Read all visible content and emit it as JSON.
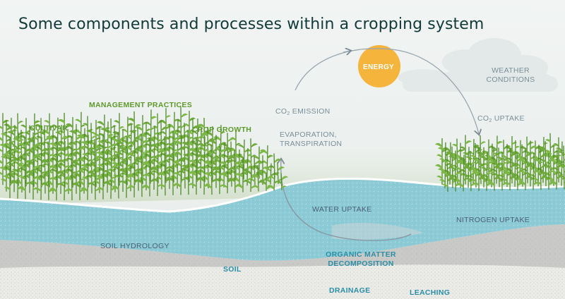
{
  "title": "Some components and processes within a cropping system",
  "labels": {
    "management": "MANAGEMENT PRACTICES",
    "cultivar": "CULTIVAR",
    "crop_growth": "CROP GROWTH",
    "energy": "ENERGY",
    "weather_1": "WEATHER",
    "weather_2": "CONDITIONS",
    "co2_emission_pre": "CO",
    "co2_emission_sub": "2",
    "co2_emission_post": " EMISSION",
    "co2_uptake_pre": "CO",
    "co2_uptake_sub": "2",
    "co2_uptake_post": " UPTAKE",
    "evap_1": "EVAPORATION,",
    "evap_2": "TRANSPIRATION",
    "water_uptake": "WATER UPTAKE",
    "nitrogen_uptake": "NITROGEN UPTAKE",
    "soil_hydrology": "SOIL HYDROLOGY",
    "soil": "SOIL",
    "organic_1": "ORGANIC MATTER",
    "organic_2": "DECOMPOSITION",
    "drainage": "DRAINAGE",
    "leaching": "LEACHING"
  },
  "colors": {
    "sky": "#eef2f1",
    "sun": "#f5b43c",
    "water": "#8ccbd6",
    "soil": "#c9c9c7",
    "subsoil": "#ebebe7",
    "crop": "#6ea93a",
    "crop_dark": "#4e8a2a"
  }
}
